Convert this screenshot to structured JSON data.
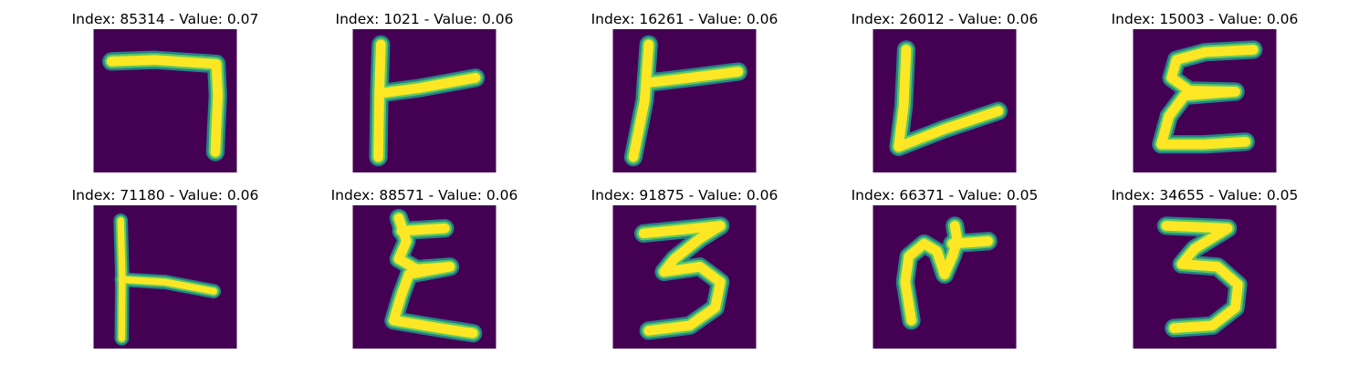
{
  "colors": {
    "background": "#440154",
    "stroke_edge": "#21918c",
    "stroke_mid": "#5ec962",
    "stroke_core": "#fde725"
  },
  "panels": [
    {
      "title": "Index: 85314 - Value: 0.07",
      "icon": "digit-7-glyph"
    },
    {
      "title": "Index: 1021 - Value: 0.06",
      "icon": "digit-f-glyph"
    },
    {
      "title": "Index: 16261 - Value: 0.06",
      "icon": "digit-f-glyph"
    },
    {
      "title": "Index: 26012 - Value: 0.06",
      "icon": "digit-l-glyph"
    },
    {
      "title": "Index: 15003 - Value: 0.06",
      "icon": "digit-e-glyph"
    },
    {
      "title": "Index: 71180 - Value: 0.06",
      "icon": "digit-f-glyph"
    },
    {
      "title": "Index: 88571 - Value: 0.06",
      "icon": "digit-e-glyph"
    },
    {
      "title": "Index: 91875 - Value: 0.06",
      "icon": "digit-3-glyph"
    },
    {
      "title": "Index: 66371 - Value: 0.05",
      "icon": "digit-m-glyph"
    },
    {
      "title": "Index: 34655 - Value: 0.05",
      "icon": "digit-3-glyph"
    }
  ]
}
